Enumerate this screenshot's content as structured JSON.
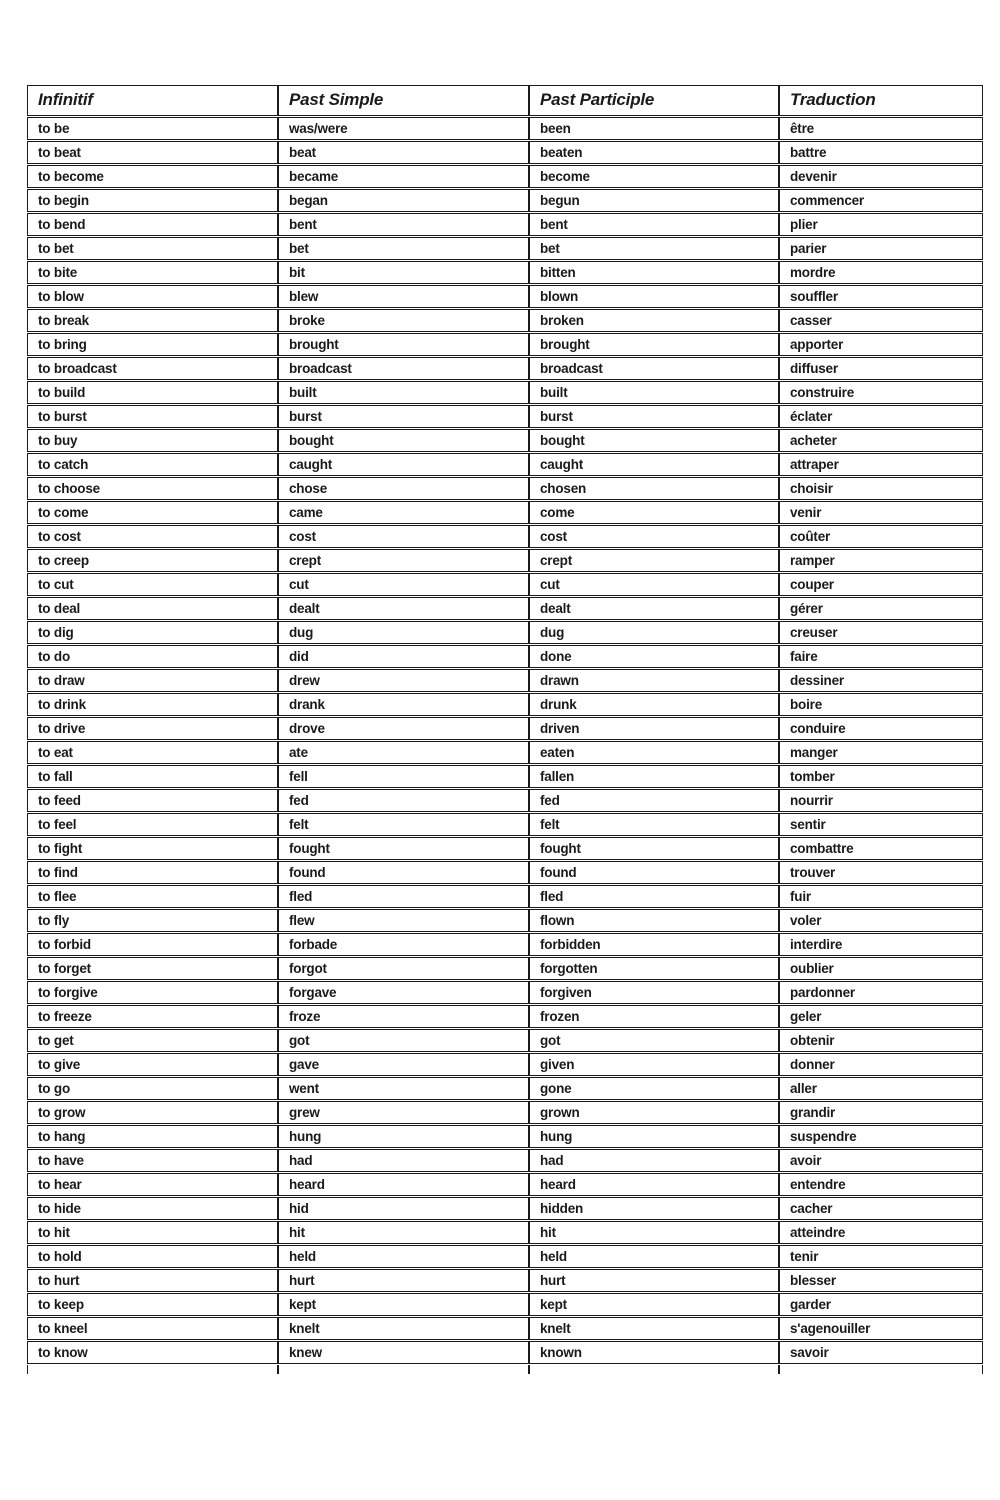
{
  "document": {
    "type": "irregular-verbs-worksheet"
  },
  "table": {
    "headers": [
      "Infinitif",
      "Past Simple",
      "Past Participle",
      "Traduction"
    ],
    "rows": [
      [
        "to be",
        "was/were",
        "been",
        "être"
      ],
      [
        "to beat",
        "beat",
        "beaten",
        "battre"
      ],
      [
        "to become",
        "became",
        "become",
        "devenir"
      ],
      [
        "to begin",
        "began",
        "begun",
        "commencer"
      ],
      [
        "to bend",
        "bent",
        "bent",
        "plier"
      ],
      [
        "to bet",
        "bet",
        "bet",
        "parier"
      ],
      [
        "to bite",
        "bit",
        "bitten",
        "mordre"
      ],
      [
        "to blow",
        "blew",
        "blown",
        "souffler"
      ],
      [
        "to break",
        "broke",
        "broken",
        "casser"
      ],
      [
        "to bring",
        "brought",
        "brought",
        "apporter"
      ],
      [
        "to broadcast",
        "broadcast",
        "broadcast",
        "diffuser"
      ],
      [
        "to build",
        "built",
        "built",
        "construire"
      ],
      [
        "to burst",
        "burst",
        "burst",
        "éclater"
      ],
      [
        "to buy",
        "bought",
        "bought",
        "acheter"
      ],
      [
        "to catch",
        "caught",
        "caught",
        "attraper"
      ],
      [
        "to choose",
        "chose",
        "chosen",
        "choisir"
      ],
      [
        "to come",
        "came",
        "come",
        "venir"
      ],
      [
        "to cost",
        "cost",
        "cost",
        "coûter"
      ],
      [
        "to creep",
        "crept",
        "crept",
        "ramper"
      ],
      [
        "to cut",
        "cut",
        "cut",
        "couper"
      ],
      [
        "to deal",
        "dealt",
        "dealt",
        "gérer"
      ],
      [
        "to dig",
        "dug",
        "dug",
        "creuser"
      ],
      [
        "to do",
        "did",
        "done",
        "faire"
      ],
      [
        "to draw",
        "drew",
        "drawn",
        "dessiner"
      ],
      [
        "to drink",
        "drank",
        "drunk",
        "boire"
      ],
      [
        "to drive",
        "drove",
        "driven",
        "conduire"
      ],
      [
        "to eat",
        "ate",
        "eaten",
        "manger"
      ],
      [
        "to fall",
        "fell",
        "fallen",
        "tomber"
      ],
      [
        "to feed",
        "fed",
        "fed",
        "nourrir"
      ],
      [
        "to feel",
        "felt",
        "felt",
        "sentir"
      ],
      [
        "to fight",
        "fought",
        "fought",
        "combattre"
      ],
      [
        "to find",
        "found",
        "found",
        "trouver"
      ],
      [
        "to flee",
        "fled",
        "fled",
        "fuir"
      ],
      [
        "to fly",
        "flew",
        "flown",
        "voler"
      ],
      [
        "to forbid",
        "forbade",
        "forbidden",
        "interdire"
      ],
      [
        "to forget",
        "forgot",
        "forgotten",
        "oublier"
      ],
      [
        "to forgive",
        "forgave",
        "forgiven",
        "pardonner"
      ],
      [
        "to freeze",
        "froze",
        "frozen",
        "geler"
      ],
      [
        "to get",
        "got",
        "got",
        "obtenir"
      ],
      [
        "to give",
        "gave",
        "given",
        "donner"
      ],
      [
        "to go",
        "went",
        "gone",
        "aller"
      ],
      [
        "to grow",
        "grew",
        "grown",
        "grandir"
      ],
      [
        "to hang",
        "hung",
        "hung",
        "suspendre"
      ],
      [
        "to have",
        "had",
        "had",
        "avoir"
      ],
      [
        "to hear",
        "heard",
        "heard",
        "entendre"
      ],
      [
        "to hide",
        "hid",
        "hidden",
        "cacher"
      ],
      [
        "to hit",
        "hit",
        "hit",
        "atteindre"
      ],
      [
        "to hold",
        "held",
        "held",
        "tenir"
      ],
      [
        "to hurt",
        "hurt",
        "hurt",
        "blesser"
      ],
      [
        "to keep",
        "kept",
        "kept",
        "garder"
      ],
      [
        "to kneel",
        "knelt",
        "knelt",
        "s'agenouiller"
      ],
      [
        "to know",
        "knew",
        "known",
        "savoir"
      ]
    ],
    "colors": {
      "text": "#1a1a1a",
      "border": "#1b1b1b",
      "page_background": "#ffffff"
    }
  }
}
